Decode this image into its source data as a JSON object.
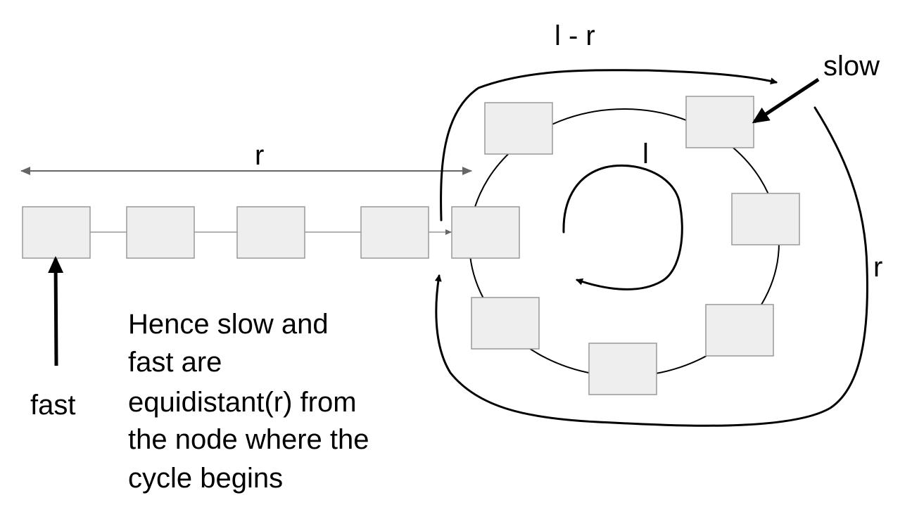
{
  "labels": {
    "l_minus_r": "l - r",
    "slow": "slow",
    "r_top": "r",
    "l_center": "l",
    "r_right": "r",
    "fast": "fast"
  },
  "caption": {
    "lines": [
      "Hence slow and",
      "fast are",
      "equidistant(r) from",
      "the node where the",
      "cycle begins"
    ]
  },
  "colors": {
    "node_fill": "#eeeeee",
    "node_stroke": "#999999",
    "arrow": "#000000",
    "measure_line": "#666666"
  }
}
